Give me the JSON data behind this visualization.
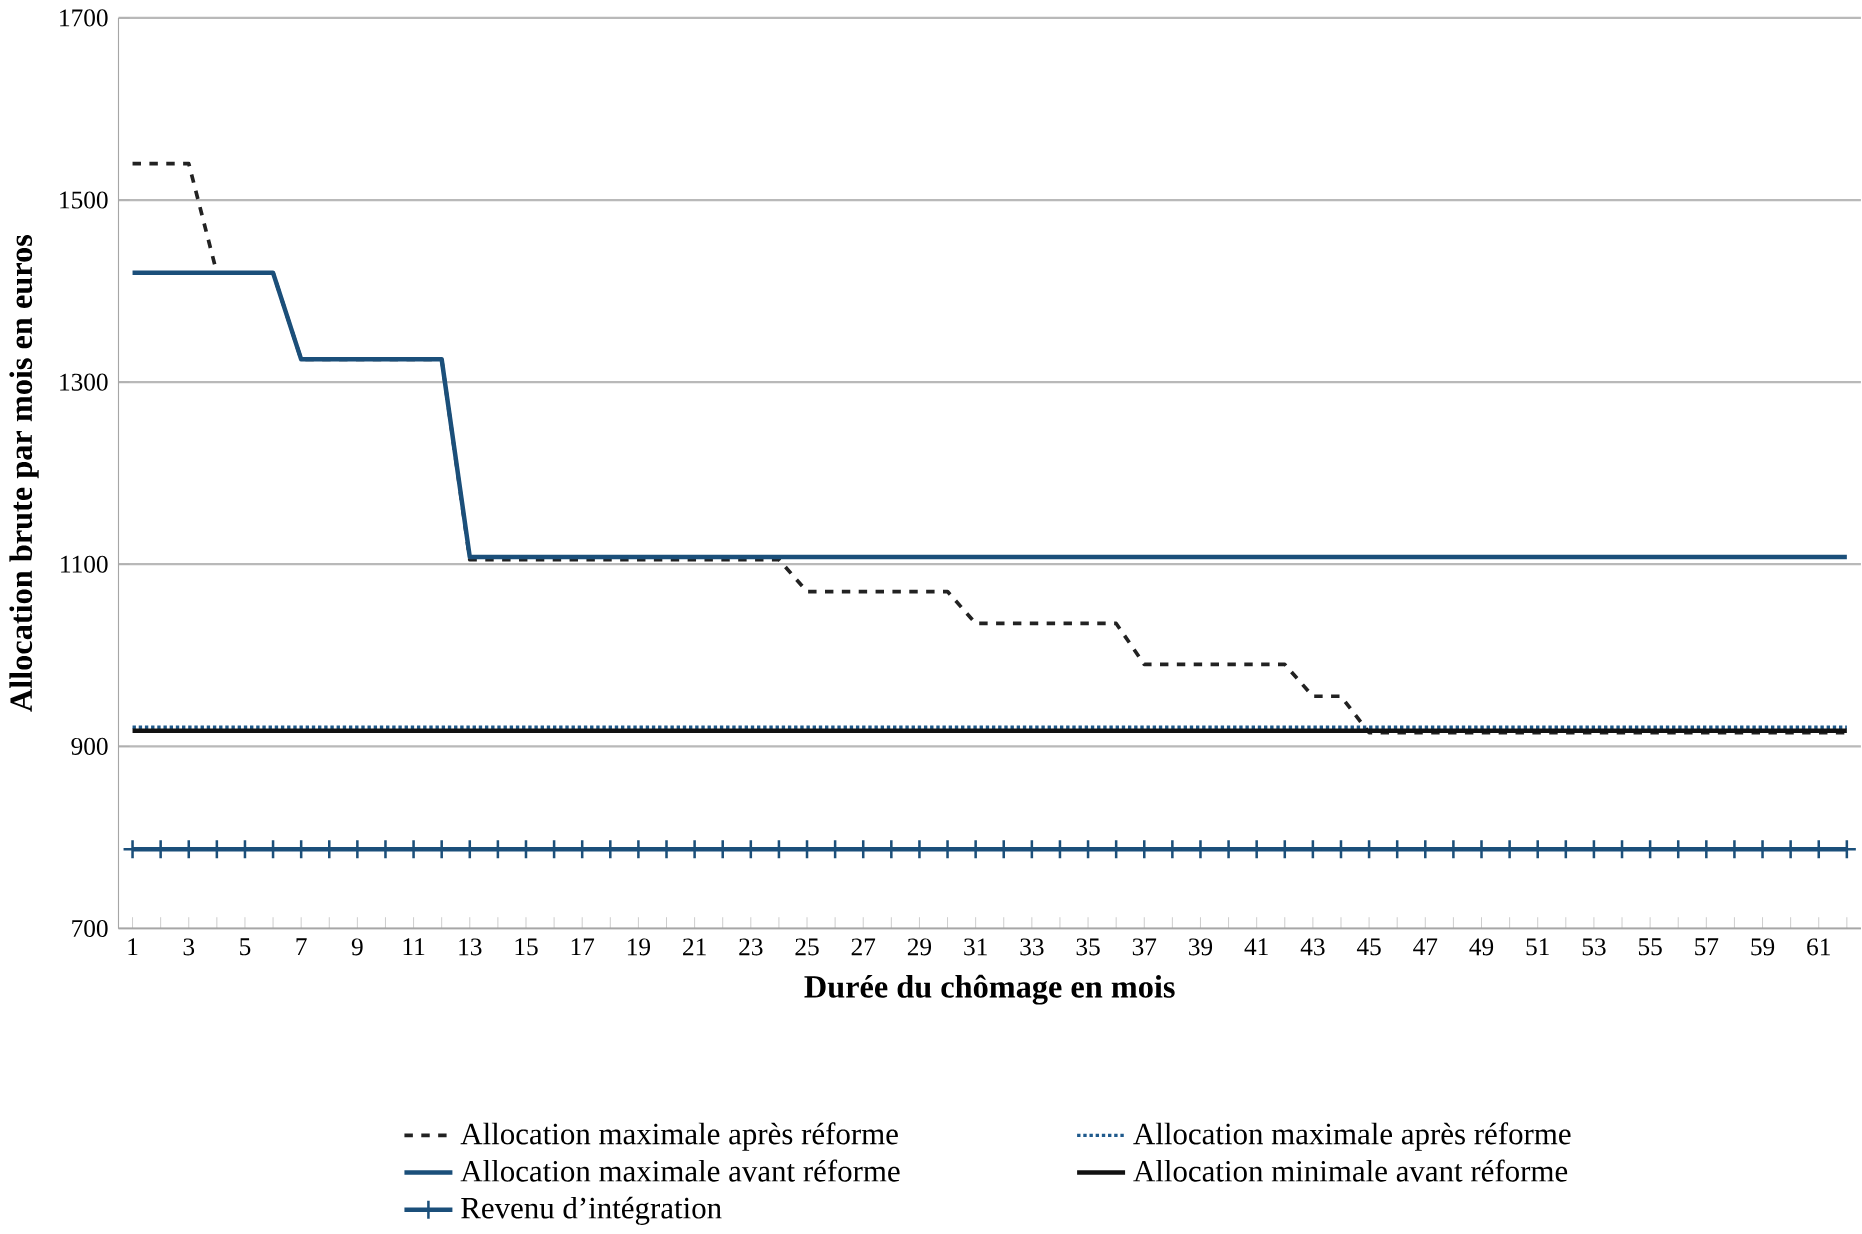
{
  "chart_data": {
    "type": "line",
    "xlabel": "Durée du chômage en mois",
    "ylabel": "Allocation brute par mois en euros",
    "categories": [
      "1",
      null,
      "3",
      null,
      "5",
      null,
      "7",
      null,
      "9",
      null,
      "11",
      null,
      "13",
      null,
      "15",
      null,
      "17",
      null,
      "19",
      null,
      "21",
      null,
      "23",
      null,
      "25",
      null,
      "27",
      null,
      "29",
      null,
      "31",
      null,
      "33",
      null,
      "35",
      null,
      "37",
      null,
      "39",
      null,
      "41",
      null,
      "43",
      null,
      "45",
      null,
      "47",
      null,
      "49",
      null,
      "51",
      null,
      "53",
      null,
      "55",
      null,
      "57",
      null,
      "59",
      null,
      "61",
      null
    ],
    "ylim": [
      700,
      1700
    ],
    "yticks": [
      700,
      900,
      1100,
      1300,
      1500,
      1700
    ],
    "grid": "y",
    "legend": "bottom",
    "series": [
      {
        "name": "Allocation maximale après réforme",
        "color": "#222222",
        "line_style": "dashed",
        "marker": "none",
        "values": [
          1540,
          1540,
          1540,
          1420,
          1420,
          1420,
          1325,
          1325,
          1325,
          1325,
          1325,
          1325,
          1105,
          1105,
          1105,
          1105,
          1105,
          1105,
          1105,
          1105,
          1105,
          1105,
          1105,
          1105,
          1070,
          1070,
          1070,
          1070,
          1070,
          1070,
          1035,
          1035,
          1035,
          1035,
          1035,
          1035,
          990,
          990,
          990,
          990,
          990,
          990,
          955,
          955,
          915,
          915,
          915,
          915,
          915,
          915,
          915,
          915,
          915,
          915,
          915,
          915,
          915,
          915,
          915,
          915,
          915,
          915
        ]
      },
      {
        "name": "Allocation maximale après réforme",
        "color": "#1f5a8c",
        "line_style": "dotted",
        "marker": "none",
        "values": [
          921,
          921,
          921,
          921,
          921,
          921,
          921,
          921,
          921,
          921,
          921,
          921,
          921,
          921,
          921,
          921,
          921,
          921,
          921,
          921,
          921,
          921,
          921,
          921,
          921,
          921,
          921,
          921,
          921,
          921,
          921,
          921,
          921,
          921,
          921,
          921,
          921,
          921,
          921,
          921,
          921,
          921,
          921,
          921,
          921,
          921,
          921,
          921,
          921,
          921,
          921,
          921,
          921,
          921,
          921,
          921,
          921,
          921,
          921,
          921,
          921,
          921
        ]
      },
      {
        "name": "Allocation maximale avant réforme",
        "color": "#1b4f7a",
        "line_style": "solid",
        "marker": "none",
        "values": [
          1420,
          1420,
          1420,
          1420,
          1420,
          1420,
          1325,
          1325,
          1325,
          1325,
          1325,
          1325,
          1108,
          1108,
          1108,
          1108,
          1108,
          1108,
          1108,
          1108,
          1108,
          1108,
          1108,
          1108,
          1108,
          1108,
          1108,
          1108,
          1108,
          1108,
          1108,
          1108,
          1108,
          1108,
          1108,
          1108,
          1108,
          1108,
          1108,
          1108,
          1108,
          1108,
          1108,
          1108,
          1108,
          1108,
          1108,
          1108,
          1108,
          1108,
          1108,
          1108,
          1108,
          1108,
          1108,
          1108,
          1108,
          1108,
          1108,
          1108,
          1108,
          1108
        ]
      },
      {
        "name": "Allocation minimale avant réforme",
        "color": "#111111",
        "line_style": "solid",
        "marker": "none",
        "values": [
          917,
          917,
          917,
          917,
          917,
          917,
          917,
          917,
          917,
          917,
          917,
          917,
          917,
          917,
          917,
          917,
          917,
          917,
          917,
          917,
          917,
          917,
          917,
          917,
          917,
          917,
          917,
          917,
          917,
          917,
          917,
          917,
          917,
          917,
          917,
          917,
          917,
          917,
          917,
          917,
          917,
          917,
          917,
          917,
          917,
          917,
          917,
          917,
          917,
          917,
          917,
          917,
          917,
          917,
          917,
          917,
          917,
          917,
          917,
          917,
          917,
          917
        ]
      },
      {
        "name": "Revenu d’intégration",
        "color": "#1b4f7a",
        "line_style": "solid",
        "marker": "cross",
        "values": [
          787,
          787,
          787,
          787,
          787,
          787,
          787,
          787,
          787,
          787,
          787,
          787,
          787,
          787,
          787,
          787,
          787,
          787,
          787,
          787,
          787,
          787,
          787,
          787,
          787,
          787,
          787,
          787,
          787,
          787,
          787,
          787,
          787,
          787,
          787,
          787,
          787,
          787,
          787,
          787,
          787,
          787,
          787,
          787,
          787,
          787,
          787,
          787,
          787,
          787,
          787,
          787,
          787,
          787,
          787,
          787,
          787,
          787,
          787,
          787,
          787,
          787
        ]
      }
    ]
  }
}
